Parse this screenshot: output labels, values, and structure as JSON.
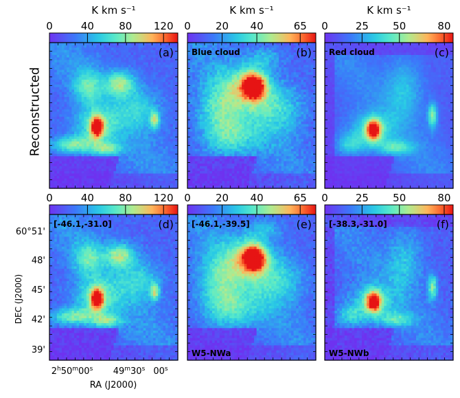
{
  "chart_data": {
    "type": "heatmap",
    "colormap": "rainbow",
    "units": "K km s⁻¹",
    "row_labels": [
      "Reconstructed",
      ""
    ],
    "xlabel": "RA (J2000)",
    "ylabel": "DEC (J2000)",
    "x_ticks": [
      "2h50m00s",
      "49m30s",
      "00s"
    ],
    "y_ticks": [
      "60°51'",
      "48'",
      "45'",
      "42'",
      "39'"
    ],
    "panels": [
      {
        "id": "(a)",
        "title": "",
        "colorbar": {
          "ticks": [
            0,
            40,
            80,
            120
          ],
          "max": 135
        },
        "peak": 1.0,
        "variant": "full",
        "noise": 0.08
      },
      {
        "id": "(b)",
        "title": "Blue cloud",
        "colorbar": {
          "ticks": [
            0,
            20,
            40,
            65
          ],
          "max": 74
        },
        "peak": 0.95,
        "variant": "blue",
        "noise": 0.12
      },
      {
        "id": "(c)",
        "title": "Red cloud",
        "colorbar": {
          "ticks": [
            0,
            25,
            50,
            80
          ],
          "max": 86
        },
        "peak": 0.9,
        "variant": "red",
        "noise": 0.05
      },
      {
        "id": "(d)",
        "title": "[-46.1,-31.0]",
        "colorbar": {
          "ticks": [
            0,
            40,
            80,
            120
          ],
          "max": 135
        },
        "peak": 1.0,
        "variant": "full",
        "noise": 0.1
      },
      {
        "id": "(e)",
        "title": "[-46.1,-39.5]",
        "subtitle": "W5-NWa",
        "colorbar": {
          "ticks": [
            0,
            20,
            40,
            65
          ],
          "max": 74
        },
        "peak": 0.95,
        "variant": "blue",
        "noise": 0.1
      },
      {
        "id": "(f)",
        "title": "[-38.3,-31.0]",
        "subtitle": "W5-NWb",
        "colorbar": {
          "ticks": [
            0,
            25,
            50,
            80
          ],
          "max": 86
        },
        "peak": 0.9,
        "variant": "red",
        "noise": 0.12
      }
    ],
    "features": {
      "full": [
        {
          "x": 0.37,
          "y": 0.58,
          "amp": 0.75,
          "sx": 0.035,
          "sy": 0.05
        },
        {
          "x": 0.37,
          "y": 0.58,
          "amp": 0.35,
          "sx": 0.12,
          "sy": 0.1
        },
        {
          "x": 0.55,
          "y": 0.28,
          "amp": 0.45,
          "sx": 0.08,
          "sy": 0.06
        },
        {
          "x": 0.82,
          "y": 0.53,
          "amp": 0.45,
          "sx": 0.025,
          "sy": 0.04
        },
        {
          "x": 0.18,
          "y": 0.7,
          "amp": 0.4,
          "sx": 0.12,
          "sy": 0.04
        },
        {
          "x": 0.45,
          "y": 0.73,
          "amp": 0.35,
          "sx": 0.08,
          "sy": 0.03
        },
        {
          "x": 0.3,
          "y": 0.3,
          "amp": 0.3,
          "sx": 0.08,
          "sy": 0.08
        },
        {
          "x": 0.7,
          "y": 0.45,
          "amp": 0.25,
          "sx": 0.12,
          "sy": 0.1
        }
      ],
      "blue": [
        {
          "x": 0.52,
          "y": 0.3,
          "amp": 0.8,
          "sx": 0.06,
          "sy": 0.06
        },
        {
          "x": 0.48,
          "y": 0.3,
          "amp": 0.45,
          "sx": 0.12,
          "sy": 0.1
        },
        {
          "x": 0.25,
          "y": 0.45,
          "amp": 0.35,
          "sx": 0.12,
          "sy": 0.15
        },
        {
          "x": 0.7,
          "y": 0.45,
          "amp": 0.3,
          "sx": 0.15,
          "sy": 0.12
        },
        {
          "x": 0.35,
          "y": 0.65,
          "amp": 0.3,
          "sx": 0.15,
          "sy": 0.1
        },
        {
          "x": 0.6,
          "y": 0.1,
          "amp": 0.2,
          "sx": 0.1,
          "sy": 0.05
        }
      ],
      "red": [
        {
          "x": 0.38,
          "y": 0.6,
          "amp": 0.85,
          "sx": 0.04,
          "sy": 0.05
        },
        {
          "x": 0.36,
          "y": 0.6,
          "amp": 0.35,
          "sx": 0.12,
          "sy": 0.08
        },
        {
          "x": 0.84,
          "y": 0.5,
          "amp": 0.5,
          "sx": 0.025,
          "sy": 0.06
        },
        {
          "x": 0.55,
          "y": 0.72,
          "amp": 0.35,
          "sx": 0.1,
          "sy": 0.035
        },
        {
          "x": 0.2,
          "y": 0.7,
          "amp": 0.3,
          "sx": 0.08,
          "sy": 0.05
        },
        {
          "x": 0.62,
          "y": 0.32,
          "amp": 0.25,
          "sx": 0.1,
          "sy": 0.15
        }
      ]
    }
  }
}
